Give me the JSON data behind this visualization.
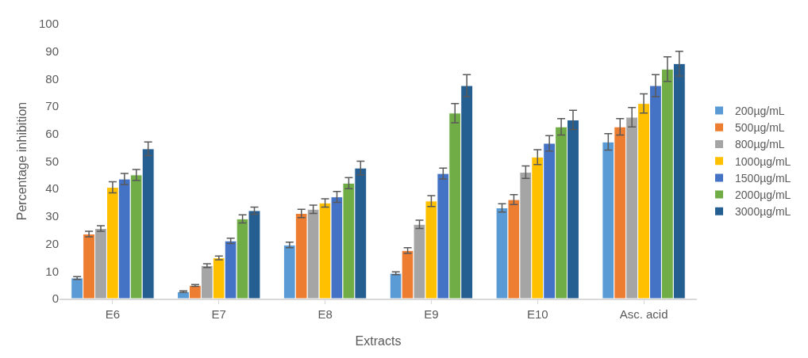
{
  "chart_data": {
    "type": "bar",
    "xlabel": "Extracts",
    "ylabel": "Percentage inhibition",
    "categories": [
      "E6",
      "E7",
      "E8",
      "E9",
      "E10",
      "Asc. acid"
    ],
    "ylim": [
      0,
      100
    ],
    "yticks": [
      0,
      10,
      20,
      30,
      40,
      50,
      60,
      70,
      80,
      90,
      100
    ],
    "grid": false,
    "legend": "right",
    "series": [
      {
        "name": "200µg/mL",
        "color": "#5b9bd5",
        "values": [
          7.5,
          2.5,
          19.5,
          9.2,
          33,
          57
        ],
        "errors": [
          0.5,
          0.3,
          1,
          0.5,
          1.5,
          3
        ]
      },
      {
        "name": "500µg/mL",
        "color": "#ed7d31",
        "values": [
          23.5,
          4.8,
          31,
          17.5,
          36,
          62.5
        ],
        "errors": [
          1,
          0.3,
          1.5,
          1,
          1.8,
          3
        ]
      },
      {
        "name": "800µg/mL",
        "color": "#a5a5a5",
        "values": [
          25.5,
          12,
          32.5,
          27,
          46,
          66
        ],
        "errors": [
          1,
          0.7,
          1.5,
          1.5,
          2.3,
          3.5
        ]
      },
      {
        "name": "1000µg/mL",
        "color": "#ffc000",
        "values": [
          40.5,
          14.8,
          34.8,
          35.5,
          51.5,
          71
        ],
        "errors": [
          2,
          0.7,
          1.5,
          2,
          2.7,
          3.5
        ]
      },
      {
        "name": "1500µg/mL",
        "color": "#4472c4",
        "values": [
          43.5,
          21,
          37,
          45.5,
          56.5,
          77.5
        ],
        "errors": [
          2,
          1,
          2,
          2,
          2.8,
          4
        ]
      },
      {
        "name": "2000µg/mL",
        "color": "#70ad47",
        "values": [
          45,
          29,
          42,
          67.5,
          62.5,
          83.5
        ],
        "errors": [
          2,
          1.5,
          2,
          3.5,
          3,
          4.5
        ]
      },
      {
        "name": "3000µg/mL",
        "color": "#255e91",
        "values": [
          54.5,
          32,
          47.5,
          77.5,
          65,
          85.5
        ],
        "errors": [
          2.5,
          1.3,
          2.5,
          4,
          3.5,
          4.5
        ]
      }
    ]
  }
}
